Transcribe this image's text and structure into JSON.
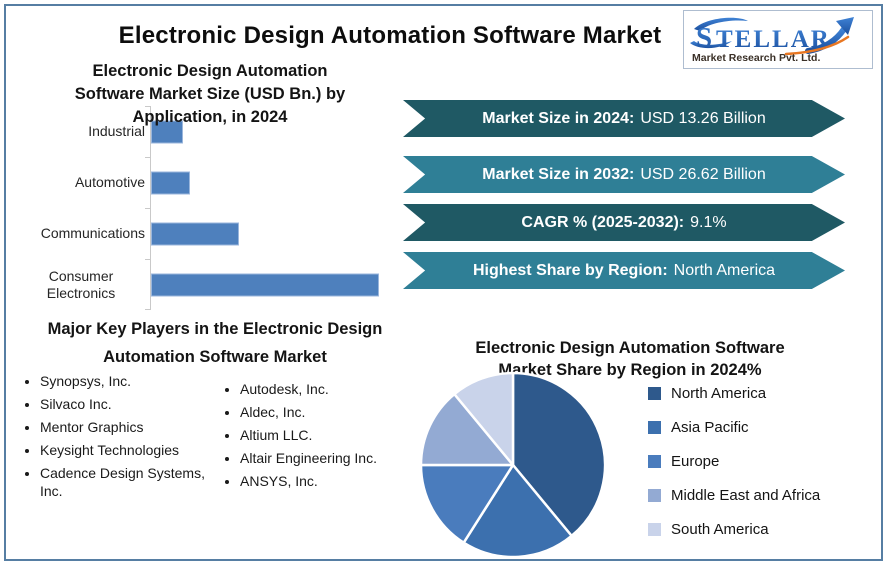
{
  "page": {
    "title": "Electronic Design Automation Software Market"
  },
  "logo": {
    "brand": "STELLAR",
    "tagline": "Market Research Pvt. Ltd.",
    "brand_color": "#2a63b8",
    "arrow_color": "#2a63b8",
    "swoosh_color": "#e87722"
  },
  "banners": [
    {
      "label": "Market Size in 2024:",
      "value": "USD 13.26 Billion",
      "color": "#1f5964"
    },
    {
      "label": "Market Size in 2032:",
      "value": "USD 26.62 Billion",
      "color": "#2f7f96"
    },
    {
      "label": "CAGR % (2025-2032):",
      "value": "9.1%",
      "color": "#1f5964"
    },
    {
      "label": "Highest Share by Region:",
      "value": "North America",
      "color": "#2f7f96"
    }
  ],
  "key_players": {
    "title_line1": "Major Key Players in the Electronic Design",
    "title_line2": "Automation Software Market",
    "column1": [
      "Synopsys, Inc.",
      "Silvaco Inc.",
      "Mentor Graphics",
      "Keysight Technologies",
      "Cadence Design Systems, Inc."
    ],
    "column2": [
      "Autodesk, Inc.",
      "Aldec, Inc.",
      "Altium LLC.",
      "Altair Engineering Inc.",
      "ANSYS, Inc."
    ]
  },
  "chart_data": [
    {
      "type": "bar",
      "orientation": "horizontal",
      "title": "Electronic Design Automation Software Market Size (USD Bn.) by Application, in 2024",
      "title_lines": [
        "Electronic Design Automation",
        "Software Market Size (USD Bn.) by",
        "Application, in 2024"
      ],
      "categories": [
        "Industrial",
        "Automotive",
        "Communications",
        "Consumer Electronics"
      ],
      "values": [
        0.9,
        1.1,
        2.5,
        6.5
      ],
      "unit": "USD Bn.",
      "xlim": [
        0,
        7
      ],
      "bar_color": "#4e80bd",
      "axis_labels_shown": false,
      "grid": false
    },
    {
      "type": "pie",
      "title": "Electronic Design Automation Software Market Share by Region in 2024%",
      "title_lines": [
        "Electronic Design Automation Software",
        "Market Share by Region in 2024%"
      ],
      "labels": [
        "North America",
        "Asia Pacific",
        "Europe",
        "Middle East and Africa",
        "South America"
      ],
      "values": [
        39,
        20,
        16,
        14,
        11
      ],
      "colors": [
        "#2e598c",
        "#3c70ae",
        "#4a7cbd",
        "#93aad3",
        "#c9d3ea"
      ],
      "start_angle_deg": 0,
      "direction": "clockwise",
      "legend_position": "right",
      "data_labels_shown": false
    }
  ]
}
